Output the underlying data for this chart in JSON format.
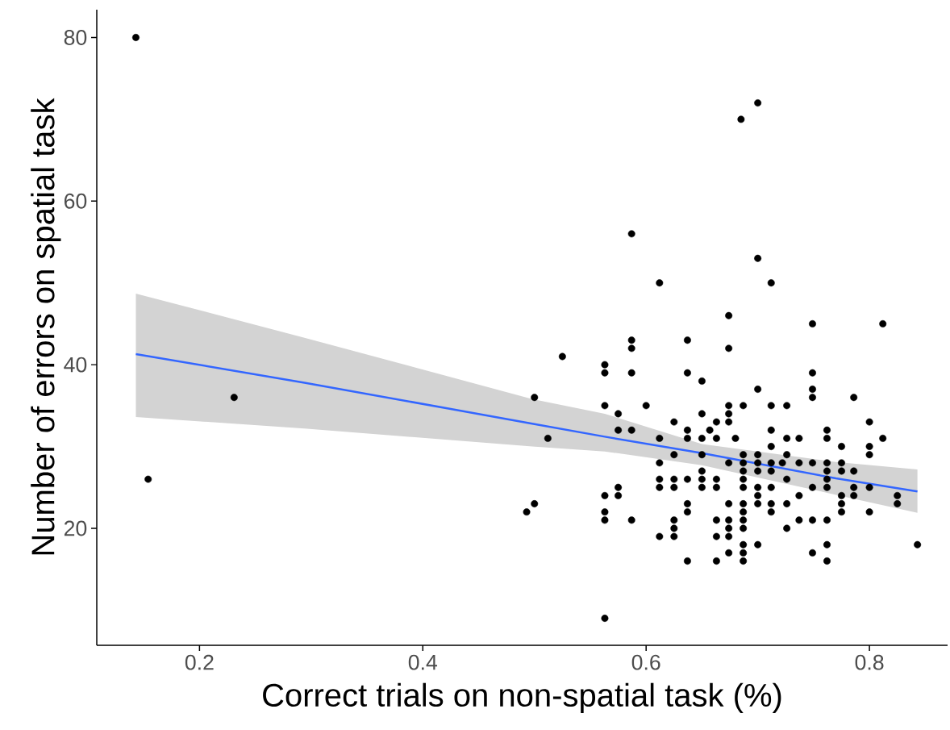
{
  "chart_data": {
    "type": "scatter",
    "xlabel": "Correct trials on non-spatial task (%)",
    "ylabel": "Number of errors on spatial task",
    "xlim": [
      0.108,
      0.87
    ],
    "ylim": [
      5.7,
      83.4
    ],
    "xticks": [
      0.2,
      0.4,
      0.6,
      0.8
    ],
    "yticks": [
      20,
      40,
      60,
      80
    ],
    "marker": "circle",
    "series": [
      {
        "color": "#000000",
        "x": [
          0.143,
          0.154,
          0.231,
          0.493,
          0.5,
          0.5,
          0.512,
          0.525,
          0.563,
          0.563,
          0.563,
          0.563,
          0.563,
          0.563,
          0.563,
          0.575,
          0.575,
          0.575,
          0.575,
          0.587,
          0.587,
          0.587,
          0.587,
          0.587,
          0.587,
          0.6,
          0.612,
          0.612,
          0.612,
          0.612,
          0.612,
          0.612,
          0.625,
          0.625,
          0.625,
          0.625,
          0.625,
          0.625,
          0.625,
          0.637,
          0.637,
          0.637,
          0.637,
          0.637,
          0.637,
          0.637,
          0.637,
          0.65,
          0.65,
          0.65,
          0.65,
          0.65,
          0.65,
          0.65,
          0.657,
          0.663,
          0.663,
          0.663,
          0.663,
          0.663,
          0.663,
          0.663,
          0.674,
          0.674,
          0.674,
          0.674,
          0.674,
          0.674,
          0.674,
          0.674,
          0.674,
          0.674,
          0.674,
          0.68,
          0.685,
          0.687,
          0.687,
          0.687,
          0.687,
          0.687,
          0.687,
          0.687,
          0.687,
          0.687,
          0.687,
          0.687,
          0.687,
          0.687,
          0.7,
          0.7,
          0.7,
          0.7,
          0.7,
          0.7,
          0.7,
          0.7,
          0.7,
          0.7,
          0.712,
          0.712,
          0.712,
          0.712,
          0.712,
          0.712,
          0.712,
          0.712,
          0.712,
          0.722,
          0.726,
          0.726,
          0.726,
          0.726,
          0.726,
          0.726,
          0.737,
          0.737,
          0.737,
          0.737,
          0.749,
          0.749,
          0.749,
          0.749,
          0.749,
          0.749,
          0.749,
          0.749,
          0.762,
          0.762,
          0.762,
          0.762,
          0.762,
          0.762,
          0.762,
          0.762,
          0.762,
          0.775,
          0.775,
          0.775,
          0.775,
          0.775,
          0.775,
          0.786,
          0.786,
          0.786,
          0.786,
          0.8,
          0.8,
          0.8,
          0.8,
          0.8,
          0.812,
          0.812,
          0.825,
          0.825,
          0.843
        ],
        "values": [
          80,
          26,
          36,
          22,
          36,
          23,
          31,
          41,
          40,
          39,
          35,
          24,
          22,
          21,
          9,
          34,
          32,
          25,
          24,
          56,
          43,
          42,
          39,
          32,
          21,
          35,
          50,
          31,
          28,
          26,
          25,
          19,
          33,
          29,
          26,
          25,
          21,
          20,
          19,
          43,
          39,
          32,
          31,
          26,
          23,
          22,
          16,
          38,
          34,
          31,
          29,
          27,
          26,
          25,
          32,
          33,
          31,
          26,
          25,
          21,
          19,
          16,
          46,
          42,
          35,
          34,
          33,
          28,
          23,
          21,
          20,
          19,
          17,
          31,
          70,
          35,
          29,
          28,
          27,
          26,
          25,
          23,
          22,
          21,
          20,
          18,
          17,
          16,
          72,
          53,
          37,
          29,
          28,
          27,
          25,
          24,
          23,
          18,
          50,
          35,
          32,
          30,
          28,
          27,
          25,
          23,
          22,
          28,
          35,
          31,
          29,
          26,
          23,
          20,
          31,
          28,
          24,
          21,
          45,
          39,
          37,
          36,
          28,
          25,
          21,
          17,
          32,
          31,
          28,
          27,
          26,
          25,
          21,
          18,
          16,
          30,
          28,
          27,
          24,
          23,
          22,
          36,
          27,
          25,
          24,
          33,
          30,
          29,
          25,
          22,
          45,
          31,
          24,
          23,
          18
        ]
      },
      {
        "type": "line",
        "marker": "none",
        "color": "#3366ff",
        "x": [
          0.143,
          0.294,
          0.498,
          0.563,
          0.65,
          0.77,
          0.843
        ],
        "values": [
          41.3,
          37.8,
          32.8,
          31.2,
          29.2,
          26.1,
          24.5
        ],
        "lower": [
          33.6,
          32.2,
          30.0,
          29.4,
          27.7,
          24.1,
          21.9
        ],
        "upper": [
          48.7,
          43.3,
          35.8,
          34.0,
          30.3,
          28.1,
          27.2
        ]
      }
    ]
  }
}
